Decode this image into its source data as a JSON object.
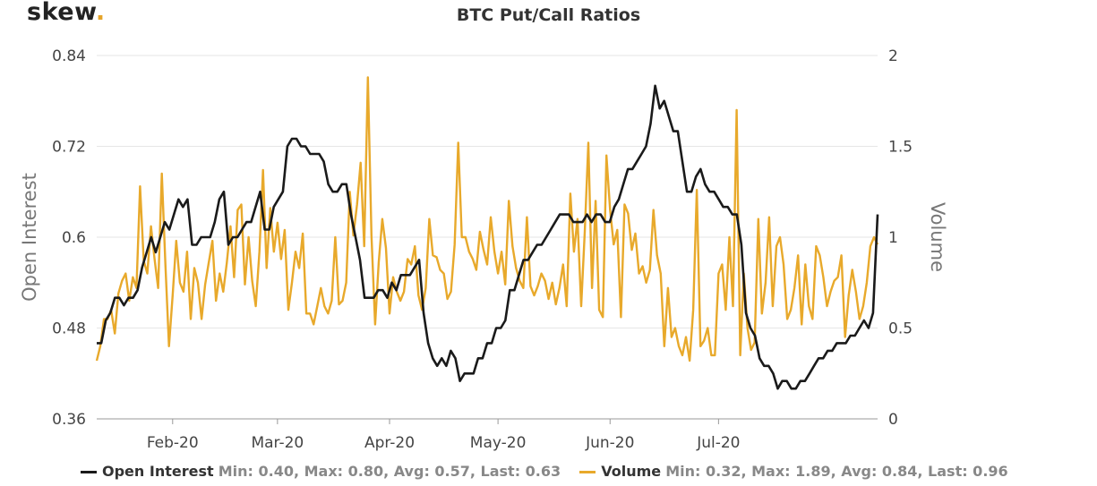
{
  "logo": {
    "text": "skew",
    "dot": "."
  },
  "colors": {
    "open_interest": "#1a1a1a",
    "volume": "#e8a92b",
    "axis": "#999999",
    "grid": "#e6e6e6"
  },
  "chart_data": {
    "type": "line",
    "title": "BTC Put/Call Ratios",
    "x_ticks": [
      "Feb-20",
      "Mar-20",
      "Apr-20",
      "May-20",
      "Jun-20",
      "Jul-20"
    ],
    "y_left": {
      "label": "Open Interest",
      "ticks": [
        "0.36",
        "0.48",
        "0.6",
        "0.72",
        "0.84"
      ],
      "range": [
        0.36,
        0.84
      ]
    },
    "y_right": {
      "label": "Volume",
      "ticks": [
        "0",
        "0.5",
        "1",
        "1.5",
        "2"
      ],
      "range": [
        0,
        2
      ]
    },
    "grid": "horizontal",
    "legend_position": "bottom",
    "series": [
      {
        "name": "Open Interest",
        "axis": "left",
        "stats": "Min: 0.40, Max: 0.80, Avg: 0.57, Last: 0.63",
        "start_date": "2020-01-11",
        "values": [
          0.46,
          0.46,
          0.49,
          0.5,
          0.52,
          0.52,
          0.51,
          0.52,
          0.52,
          0.53,
          0.56,
          0.58,
          0.6,
          0.58,
          0.6,
          0.62,
          0.61,
          0.63,
          0.65,
          0.64,
          0.65,
          0.59,
          0.59,
          0.6,
          0.6,
          0.6,
          0.62,
          0.65,
          0.66,
          0.59,
          0.6,
          0.6,
          0.61,
          0.62,
          0.62,
          0.64,
          0.66,
          0.61,
          0.61,
          0.64,
          0.65,
          0.66,
          0.72,
          0.73,
          0.73,
          0.72,
          0.72,
          0.71,
          0.71,
          0.71,
          0.7,
          0.67,
          0.66,
          0.66,
          0.67,
          0.67,
          0.63,
          0.6,
          0.57,
          0.52,
          0.52,
          0.52,
          0.53,
          0.53,
          0.52,
          0.54,
          0.53,
          0.55,
          0.55,
          0.55,
          0.56,
          0.57,
          0.5,
          0.46,
          0.44,
          0.43,
          0.44,
          0.43,
          0.45,
          0.44,
          0.41,
          0.42,
          0.42,
          0.42,
          0.44,
          0.44,
          0.46,
          0.46,
          0.48,
          0.48,
          0.49,
          0.53,
          0.53,
          0.55,
          0.57,
          0.57,
          0.58,
          0.59,
          0.59,
          0.6,
          0.61,
          0.62,
          0.63,
          0.63,
          0.63,
          0.62,
          0.62,
          0.62,
          0.63,
          0.62,
          0.63,
          0.63,
          0.62,
          0.62,
          0.64,
          0.65,
          0.67,
          0.69,
          0.69,
          0.7,
          0.71,
          0.72,
          0.75,
          0.8,
          0.77,
          0.78,
          0.76,
          0.74,
          0.74,
          0.7,
          0.66,
          0.66,
          0.68,
          0.69,
          0.67,
          0.66,
          0.66,
          0.65,
          0.64,
          0.64,
          0.63,
          0.63,
          0.59,
          0.5,
          0.48,
          0.47,
          0.44,
          0.43,
          0.43,
          0.42,
          0.4,
          0.41,
          0.41,
          0.4,
          0.4,
          0.41,
          0.41,
          0.42,
          0.43,
          0.44,
          0.44,
          0.45,
          0.45,
          0.46,
          0.46,
          0.46,
          0.47,
          0.47,
          0.48,
          0.49,
          0.48,
          0.5,
          0.63
        ]
      },
      {
        "name": "Volume",
        "axis": "right",
        "stats": "Min: 0.32, Max: 1.89, Avg: 0.84, Last: 0.96",
        "start_date": "2020-01-11",
        "values": [
          0.32,
          0.4,
          0.55,
          0.55,
          0.6,
          0.47,
          0.69,
          0.76,
          0.8,
          0.65,
          0.78,
          0.72,
          1.28,
          0.87,
          0.8,
          1.06,
          0.88,
          0.72,
          1.35,
          0.85,
          0.4,
          0.68,
          0.98,
          0.75,
          0.7,
          0.92,
          0.55,
          0.83,
          0.75,
          0.55,
          0.74,
          0.86,
          0.98,
          0.65,
          0.8,
          0.7,
          0.86,
          1.06,
          0.78,
          1.15,
          1.18,
          0.74,
          1.0,
          0.76,
          0.62,
          0.92,
          1.37,
          0.83,
          1.16,
          0.92,
          1.08,
          0.88,
          1.04,
          0.6,
          0.75,
          0.92,
          0.83,
          1.02,
          0.58,
          0.58,
          0.52,
          0.62,
          0.72,
          0.62,
          0.58,
          0.65,
          1.0,
          0.63,
          0.65,
          0.75,
          1.25,
          1.01,
          1.18,
          1.41,
          0.95,
          1.88,
          1.01,
          0.52,
          0.86,
          1.1,
          0.94,
          0.58,
          0.78,
          0.7,
          0.65,
          0.7,
          0.88,
          0.85,
          0.95,
          0.68,
          0.6,
          0.72,
          1.1,
          0.9,
          0.89,
          0.82,
          0.8,
          0.66,
          0.7,
          0.96,
          1.52,
          1.0,
          1.0,
          0.92,
          0.88,
          0.82,
          1.03,
          0.93,
          0.85,
          1.11,
          0.92,
          0.8,
          0.92,
          0.74,
          1.2,
          0.95,
          0.83,
          0.76,
          0.72,
          1.11,
          0.73,
          0.68,
          0.73,
          0.8,
          0.76,
          0.66,
          0.75,
          0.63,
          0.72,
          0.85,
          0.62,
          1.24,
          0.92,
          1.1,
          0.62,
          1.03,
          1.52,
          0.72,
          1.2,
          0.6,
          0.56,
          1.45,
          1.15,
          0.96,
          1.04,
          0.56,
          1.18,
          1.13,
          0.93,
          1.02,
          0.8,
          0.84,
          0.75,
          0.82,
          1.15,
          0.9,
          0.8,
          0.4,
          0.72,
          0.45,
          0.5,
          0.4,
          0.35,
          0.45,
          0.32,
          0.6,
          1.26,
          0.4,
          0.43,
          0.5,
          0.35,
          0.35,
          0.8,
          0.85,
          0.6,
          1.0,
          0.62,
          1.7,
          0.35,
          0.8,
          0.5,
          0.38,
          0.42,
          1.1,
          0.58,
          0.75,
          1.11,
          0.62,
          0.95,
          1.0,
          0.85,
          0.55,
          0.6,
          0.72,
          0.9,
          0.52,
          0.85,
          0.62,
          0.55,
          0.95,
          0.9,
          0.78,
          0.62,
          0.7,
          0.76,
          0.78,
          0.9,
          0.45,
          0.68,
          0.82,
          0.7,
          0.55,
          0.62,
          0.75,
          0.95,
          1.0,
          0.96
        ]
      }
    ]
  }
}
